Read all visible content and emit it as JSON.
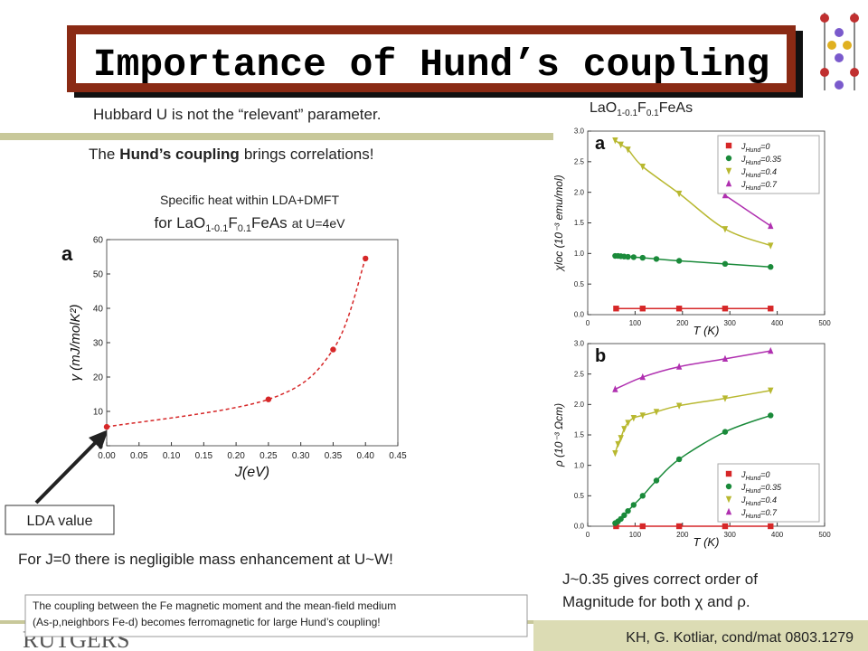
{
  "title": "Importance of Hund’s coupling",
  "hubbard": "Hubbard U is not the “relevant” parameter.",
  "hund": {
    "pre": "The",
    "bold": "Hund’s coupling",
    "post": "brings correlations!"
  },
  "specific_heat": {
    "line1": "Specific heat within LDA+DMFT",
    "p1": "for LaO",
    "s1": "1-0.1",
    "p2": "F",
    "s2": "0.1",
    "p3": "FeAs",
    "p4": "at U=4eV"
  },
  "compound": {
    "p1": "LaO",
    "s1": "1-0.1",
    "p2": "F",
    "s2": "0.1",
    "p3": "FeAs"
  },
  "lda_label": "LDA value",
  "mass_note": "For J=0 there is negligible mass enhancement at U~W!",
  "conclusion": [
    "J~0.35 gives correct order of",
    "Magnitude for both χ and ρ."
  ],
  "footnote": [
    "The coupling between the Fe magnetic moment and the mean-field medium",
    "(As-p,neighbors Fe-d) becomes ferromagnetic for large Hund’s coupling!"
  ],
  "reference": "KH, G. Kotliar, cond/mat 0803.1279",
  "logo": "RUTGERS",
  "charts": [
    {
      "panel": "a",
      "xlabel": "J(eV)",
      "ylabel": "γ (mJ/molK²)",
      "xlim": [
        0,
        0.45
      ],
      "xticks": [
        {
          "value": 0,
          "label": "0.00"
        },
        {
          "value": 0.05,
          "label": "0.05"
        },
        {
          "value": 0.1,
          "label": "0.10"
        },
        {
          "value": 0.15,
          "label": "0.15"
        },
        {
          "value": 0.2,
          "label": "0.20"
        },
        {
          "value": 0.25,
          "label": "0.25"
        },
        {
          "value": 0.3,
          "label": "0.30"
        },
        {
          "value": 0.35,
          "label": "0.35"
        },
        {
          "value": 0.4,
          "label": "0.40"
        },
        {
          "value": 0.45,
          "label": "0.45"
        }
      ],
      "ylim": [
        0,
        60
      ],
      "yticks": [
        0,
        10,
        20,
        30,
        40,
        50,
        60
      ],
      "series": [
        {
          "color": "#d62728",
          "marker": "circle",
          "line_style": "dashed",
          "x": [
            0,
            0.25,
            0.35,
            0.4
          ],
          "values": [
            5.5,
            13.5,
            28,
            54.5
          ]
        }
      ]
    },
    {
      "panel": "a",
      "xlabel": "T (K)",
      "ylabel": "χloc (10⁻³ emu/mol)",
      "legend_symbol": "J",
      "legend_sub": "Hund",
      "legend": "upper right",
      "xlim": [
        0,
        500
      ],
      "xticks": [
        0,
        100,
        200,
        300,
        400,
        500
      ],
      "ylim": [
        0,
        3.0
      ],
      "yticks": [
        {
          "value": 0,
          "label": "0.0"
        },
        0.5,
        {
          "value": 1,
          "label": "1.0"
        },
        1.5,
        {
          "value": 2,
          "label": "2.0"
        },
        2.5,
        {
          "value": 3,
          "label": "3.0"
        }
      ],
      "series": [
        {
          "name": "=0",
          "color": "#d62728",
          "marker": "square",
          "x": [
            60,
            116,
            193,
            290,
            386
          ],
          "values": [
            0.1,
            0.1,
            0.1,
            0.1,
            0.1
          ]
        },
        {
          "name": "=0.35",
          "color": "#1a8a3a",
          "marker": "circle",
          "x": [
            58,
            64,
            70,
            77,
            85,
            97,
            116,
            145,
            193,
            290,
            386
          ],
          "values": [
            0.96,
            0.96,
            0.955,
            0.95,
            0.945,
            0.94,
            0.93,
            0.91,
            0.88,
            0.83,
            0.78
          ]
        },
        {
          "name": "=0.4",
          "color": "#b8b830",
          "marker": "tri-down",
          "x": [
            58,
            70,
            85,
            116,
            193,
            290,
            386
          ],
          "values": [
            2.85,
            2.78,
            2.7,
            2.42,
            1.98,
            1.4,
            1.13
          ]
        },
        {
          "name": "=0.7",
          "color": "#b030b0",
          "marker": "tri-up",
          "x": [
            290,
            386
          ],
          "values": [
            1.95,
            1.45
          ]
        }
      ]
    },
    {
      "panel": "b",
      "xlabel": "T (K)",
      "ylabel": "ρ (10⁻³ Ωcm)",
      "legend_symbol": "J",
      "legend_sub": "Hund",
      "legend": "lower right",
      "xlim": [
        0,
        500
      ],
      "xticks": [
        0,
        100,
        200,
        300,
        400,
        500
      ],
      "ylim": [
        0,
        3.0
      ],
      "yticks": [
        {
          "value": 0,
          "label": "0.0"
        },
        0.5,
        {
          "value": 1,
          "label": "1.0"
        },
        1.5,
        {
          "value": 2,
          "label": "2.0"
        },
        2.5,
        {
          "value": 3,
          "label": "3.0"
        }
      ],
      "series": [
        {
          "name": "=0",
          "color": "#d62728",
          "marker": "square",
          "x": [
            60,
            116,
            193,
            290,
            386
          ],
          "values": [
            0,
            0,
            0,
            0,
            0
          ]
        },
        {
          "name": "=0.35",
          "color": "#1a8a3a",
          "marker": "circle",
          "x": [
            58,
            64,
            70,
            77,
            85,
            97,
            116,
            145,
            193,
            290,
            386
          ],
          "values": [
            0.05,
            0.08,
            0.12,
            0.18,
            0.25,
            0.35,
            0.5,
            0.75,
            1.1,
            1.55,
            1.82
          ]
        },
        {
          "name": "=0.4",
          "color": "#b8b830",
          "marker": "tri-down",
          "x": [
            58,
            64,
            70,
            77,
            85,
            97,
            116,
            145,
            193,
            290,
            386
          ],
          "values": [
            1.2,
            1.35,
            1.45,
            1.6,
            1.7,
            1.78,
            1.82,
            1.88,
            1.98,
            2.1,
            2.23
          ]
        },
        {
          "name": "=0.7",
          "color": "#b030b0",
          "marker": "tri-up",
          "x": [
            58,
            116,
            193,
            290,
            386
          ],
          "values": [
            2.25,
            2.45,
            2.62,
            2.75,
            2.88
          ]
        }
      ]
    }
  ]
}
